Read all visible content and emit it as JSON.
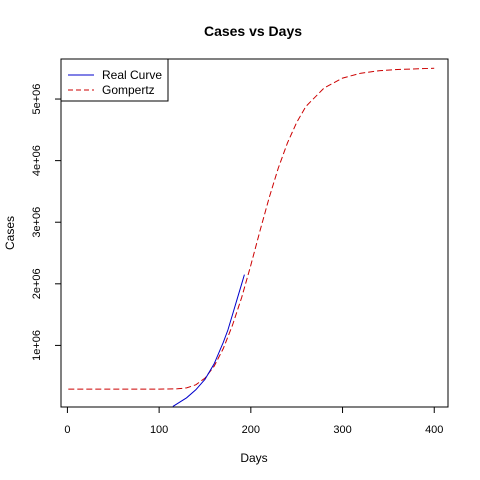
{
  "chart_data": {
    "type": "line",
    "title": "Cases vs Days",
    "xlabel": "Days",
    "ylabel": "Cases",
    "xlim": [
      -7,
      415
    ],
    "ylim": [
      0,
      5650000
    ],
    "x_ticks": [
      0,
      100,
      200,
      300,
      400
    ],
    "x_tick_labels": [
      "0",
      "100",
      "200",
      "300",
      "400"
    ],
    "y_ticks": [
      1000000,
      2000000,
      3000000,
      4000000,
      5000000
    ],
    "y_tick_labels": [
      "1e+06",
      "2e+06",
      "3e+06",
      "4e+06",
      "5e+06"
    ],
    "grid": false,
    "legend_position": "top-left",
    "series": [
      {
        "name": "Real Curve",
        "color": "#0000cc",
        "dash": "solid",
        "x": [
          115,
          130,
          140,
          150,
          160,
          170,
          175,
          180,
          185,
          190,
          193
        ],
        "y": [
          10000,
          150000,
          280000,
          450000,
          700000,
          1050000,
          1250000,
          1500000,
          1750000,
          2000000,
          2150000
        ]
      },
      {
        "name": "Gompertz",
        "color": "#cc0000",
        "dash": "dashed",
        "x": [
          1,
          50,
          100,
          120,
          130,
          140,
          150,
          160,
          170,
          180,
          190,
          200,
          210,
          220,
          230,
          240,
          250,
          260,
          280,
          300,
          320,
          340,
          360,
          380,
          400
        ],
        "y": [
          290000,
          290000,
          290000,
          295000,
          310000,
          360000,
          470000,
          660000,
          950000,
          1330000,
          1780000,
          2300000,
          2860000,
          3400000,
          3880000,
          4290000,
          4620000,
          4880000,
          5180000,
          5340000,
          5420000,
          5460000,
          5480000,
          5490000,
          5500000
        ]
      }
    ]
  }
}
